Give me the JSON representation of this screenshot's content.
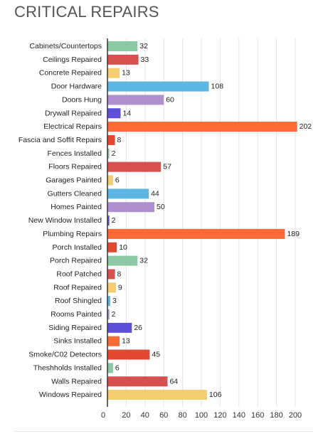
{
  "chart_data": {
    "type": "bar",
    "orientation": "horizontal",
    "title": "CRITICAL REPAIRS",
    "categories": [
      "Cabinets/Countertops",
      "Ceilings Repaired",
      "Concrete Repaired",
      "Door Hardware",
      "Doors Hung",
      "Drywall Repaired",
      "Electrical Repairs",
      "Fascia and Soffit Repairs",
      "Fences Installed",
      "Floors Repaired",
      "Garages Painted",
      "Gutters Cleaned",
      "Homes Painted",
      "New Window Installed",
      "Plumbing Repairs",
      "Porch Installed",
      "Porch Repaired",
      "Roof Patched",
      "Roof Repaired",
      "Roof Shingled",
      "Rooms Painted",
      "Siding Repaired",
      "Sinks Installed",
      "Smoke/C02 Detectors",
      "Theshholds Installed",
      "Walls Repaired",
      "Windows Repaired"
    ],
    "values": [
      32,
      33,
      13,
      108,
      60,
      14,
      202,
      8,
      2,
      57,
      6,
      44,
      50,
      2,
      189,
      10,
      32,
      8,
      9,
      3,
      2,
      26,
      13,
      45,
      6,
      64,
      106
    ],
    "colors": [
      "#8cc8a4",
      "#d94f4f",
      "#f1cd6f",
      "#5db5e4",
      "#b090cc",
      "#5d4fd9",
      "#fe6a35",
      "#e0482f",
      "#8cc8a4",
      "#d94f4f",
      "#f1cd6f",
      "#5db5e4",
      "#b090cc",
      "#5d4fd9",
      "#fe6a35",
      "#e0482f",
      "#8cc8a4",
      "#d94f4f",
      "#f1cd6f",
      "#5db5e4",
      "#b090cc",
      "#5d4fd9",
      "#fe6a35",
      "#e0482f",
      "#8cc8a4",
      "#d94f4f",
      "#f1cd6f"
    ],
    "xlim": [
      0,
      205
    ],
    "xticks": [
      0,
      20,
      40,
      60,
      80,
      100,
      120,
      140,
      160,
      180,
      200
    ],
    "grid": true,
    "legend": "none"
  }
}
